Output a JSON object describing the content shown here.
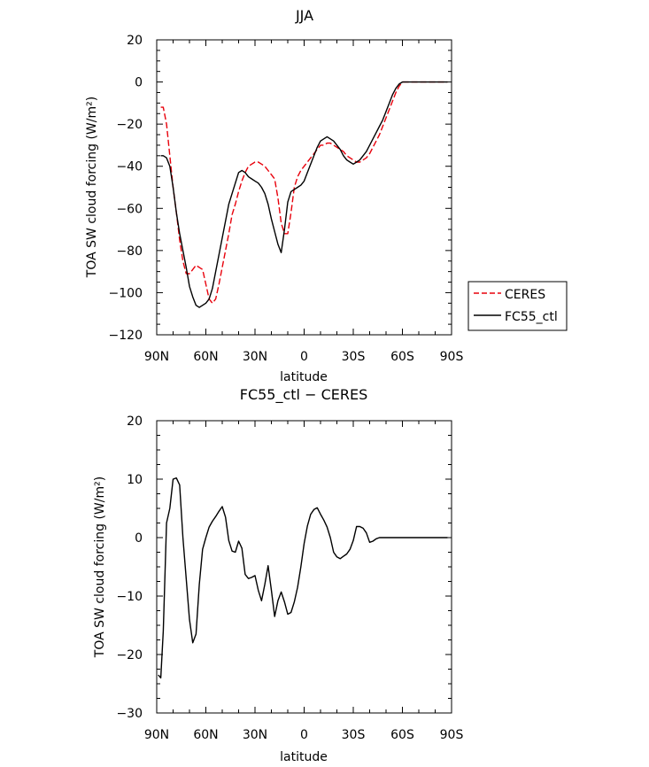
{
  "chart_data": [
    {
      "type": "line",
      "title": "JJA",
      "xlabel": "latitude",
      "ylabel": "TOA SW cloud forcing (W/m²)",
      "xlim": [
        -90,
        90
      ],
      "ylim": [
        -120,
        20
      ],
      "x_ticks": [
        {
          "value": -90,
          "label": "90N"
        },
        {
          "value": -60,
          "label": "60N"
        },
        {
          "value": -30,
          "label": "30N"
        },
        {
          "value": 0,
          "label": "0"
        },
        {
          "value": 30,
          "label": "30S"
        },
        {
          "value": 60,
          "label": "60S"
        },
        {
          "value": 90,
          "label": "90S"
        }
      ],
      "y_ticks": [
        20,
        0,
        -20,
        -40,
        -60,
        -80,
        -100,
        -120
      ],
      "y_tick_labels": [
        "20",
        "0",
        "−20",
        "−40",
        "−60",
        "−80",
        "−100",
        "−120"
      ],
      "grid": false,
      "legend": "right",
      "series": [
        {
          "name": "CERES",
          "color": "#e8000b",
          "dash": "dashed",
          "x": [
            -87.5,
            -86,
            -84,
            -82,
            -80,
            -78,
            -76,
            -74,
            -72,
            -70,
            -68,
            -66,
            -64,
            -62,
            -60,
            -58,
            -56,
            -54,
            -52,
            -50,
            -48,
            -46,
            -44,
            -42,
            -40,
            -38,
            -36,
            -34,
            -32,
            -30,
            -28,
            -26,
            -24,
            -22,
            -20,
            -18,
            -16,
            -14,
            -12,
            -10,
            -8,
            -6,
            -4,
            -2,
            0,
            2,
            4,
            6,
            8,
            10,
            12,
            14,
            16,
            18,
            20,
            22,
            24,
            26,
            28,
            30,
            32,
            34,
            36,
            38,
            40,
            42,
            44,
            46,
            48,
            50,
            52,
            54,
            56,
            58,
            60,
            62,
            64,
            66,
            68,
            70,
            75,
            80,
            85,
            87.5
          ],
          "y": [
            -12,
            -12,
            -20,
            -35,
            -50,
            -62,
            -75,
            -85,
            -91,
            -91,
            -89,
            -87,
            -88,
            -89,
            -96,
            -103,
            -105,
            -103,
            -96,
            -88,
            -80,
            -72,
            -63,
            -58,
            -52,
            -47,
            -43,
            -40,
            -39,
            -38,
            -38,
            -39,
            -40,
            -42,
            -44,
            -46,
            -55,
            -67,
            -72,
            -72,
            -62,
            -50,
            -45,
            -42,
            -40,
            -38,
            -36,
            -34,
            -32,
            -30,
            -30,
            -29,
            -29,
            -30,
            -31,
            -32,
            -33,
            -35,
            -36,
            -37,
            -38,
            -38,
            -37,
            -36,
            -34,
            -31,
            -28,
            -25,
            -21,
            -17,
            -13,
            -9,
            -5,
            -2,
            0,
            0,
            0,
            0,
            0,
            0,
            0,
            0,
            0,
            0
          ]
        },
        {
          "name": "FC55_ctl",
          "color": "#000000",
          "dash": "solid",
          "x": [
            -87.5,
            -86,
            -84,
            -82,
            -80,
            -78,
            -76,
            -74,
            -72,
            -70,
            -68,
            -66,
            -64,
            -62,
            -60,
            -58,
            -56,
            -54,
            -52,
            -50,
            -48,
            -46,
            -44,
            -42,
            -40,
            -38,
            -36,
            -34,
            -32,
            -30,
            -28,
            -26,
            -24,
            -22,
            -20,
            -18,
            -16,
            -14,
            -12,
            -10,
            -8,
            -6,
            -4,
            -2,
            0,
            2,
            4,
            6,
            8,
            10,
            12,
            14,
            16,
            18,
            20,
            22,
            24,
            26,
            28,
            30,
            32,
            34,
            36,
            38,
            40,
            42,
            44,
            46,
            48,
            50,
            52,
            54,
            56,
            58,
            60,
            62,
            64,
            66,
            68,
            70,
            75,
            80,
            85,
            87.5
          ],
          "y": [
            -35,
            -35,
            -36,
            -40,
            -50,
            -62,
            -72,
            -80,
            -88,
            -97,
            -102,
            -106,
            -107,
            -106,
            -105,
            -103,
            -98,
            -90,
            -82,
            -74,
            -66,
            -58,
            -53,
            -48,
            -43,
            -42,
            -43,
            -45,
            -46,
            -47,
            -48,
            -50,
            -53,
            -58,
            -65,
            -71,
            -77,
            -81,
            -70,
            -57,
            -52,
            -51,
            -50,
            -49,
            -47,
            -43,
            -39,
            -35,
            -31,
            -28,
            -27,
            -26,
            -27,
            -28,
            -30,
            -32,
            -35,
            -37,
            -38,
            -39,
            -38,
            -37,
            -35,
            -33,
            -30,
            -27,
            -24,
            -21,
            -18,
            -14,
            -10,
            -6,
            -3,
            -1,
            0,
            0,
            0,
            0,
            0,
            0,
            0,
            0,
            0,
            0
          ]
        }
      ]
    },
    {
      "type": "line",
      "title": "FC55_ctl − CERES",
      "xlabel": "latitude",
      "ylabel": "TOA SW cloud forcing (W/m²)",
      "xlim": [
        -90,
        90
      ],
      "ylim": [
        -30,
        20
      ],
      "x_ticks": [
        {
          "value": -90,
          "label": "90N"
        },
        {
          "value": -60,
          "label": "60N"
        },
        {
          "value": -30,
          "label": "30N"
        },
        {
          "value": 0,
          "label": "0"
        },
        {
          "value": 30,
          "label": "30S"
        },
        {
          "value": 60,
          "label": "60S"
        },
        {
          "value": 90,
          "label": "90S"
        }
      ],
      "y_ticks": [
        20,
        10,
        0,
        -10,
        -20,
        -30
      ],
      "y_tick_labels": [
        "20",
        "10",
        "0",
        "−10",
        "−20",
        "−30"
      ],
      "grid": false,
      "series": [
        {
          "color": "#000000",
          "dash": "solid",
          "x": [
            -89,
            -87.5,
            -86,
            -84,
            -82,
            -80,
            -78,
            -76,
            -74,
            -72,
            -70,
            -68,
            -66,
            -64,
            -62,
            -60,
            -58,
            -56,
            -54,
            -52,
            -50,
            -48,
            -46,
            -44,
            -42,
            -40,
            -38,
            -36,
            -34,
            -32,
            -30,
            -28,
            -26,
            -24,
            -22,
            -20,
            -18,
            -16,
            -14,
            -12,
            -10,
            -8,
            -6,
            -4,
            -2,
            0,
            2,
            4,
            6,
            8,
            10,
            12,
            14,
            16,
            18,
            20,
            22,
            24,
            26,
            28,
            30,
            32,
            34,
            36,
            38,
            40,
            42,
            44,
            46,
            48,
            50,
            52,
            54,
            56,
            58,
            60,
            62,
            64,
            66,
            68,
            70,
            75,
            80,
            85,
            87.5
          ],
          "y": [
            -23.5,
            -24,
            -16,
            2.5,
            5,
            10,
            10.2,
            9,
            0,
            -7,
            -14,
            -18,
            -16.5,
            -8,
            -2,
            0,
            1.8,
            2.8,
            3.6,
            4.5,
            5.3,
            3.5,
            -0.5,
            -2.3,
            -2.5,
            -0.6,
            -1.8,
            -6.3,
            -7,
            -6.8,
            -6.5,
            -9,
            -10.8,
            -8,
            -4.8,
            -9,
            -13.5,
            -10.8,
            -9.3,
            -11,
            -13.1,
            -12.8,
            -11,
            -8.5,
            -5,
            -1,
            2,
            4,
            4.8,
            5.1,
            4,
            3,
            1.8,
            0,
            -2.5,
            -3.3,
            -3.6,
            -3.2,
            -2.8,
            -2,
            -0.5,
            1.9,
            1.9,
            1.6,
            0.8,
            -0.8,
            -0.6,
            -0.2,
            0,
            0,
            0,
            0,
            0,
            0,
            0,
            0,
            0,
            0,
            0,
            0,
            0,
            0,
            0,
            0,
            0
          ]
        }
      ]
    }
  ],
  "legend": {
    "items": [
      {
        "label": "CERES",
        "color": "#e8000b",
        "dash": "dashed"
      },
      {
        "label": "FC55_ctl",
        "color": "#000000",
        "dash": "solid"
      }
    ]
  }
}
